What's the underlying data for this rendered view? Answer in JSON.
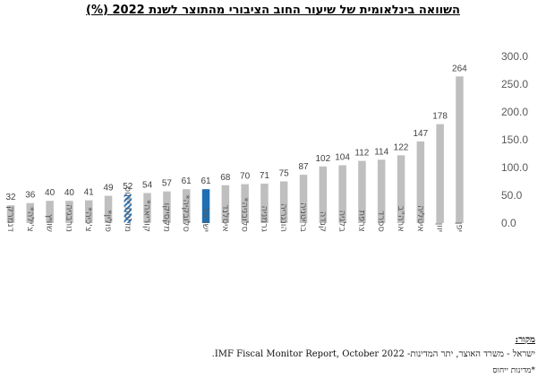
{
  "chart_data": {
    "type": "bar",
    "title": "השוואה בינלאומית של שיעור החוב הציבורי מהתוצר לשנת 2022 (%)",
    "xlabel": "",
    "ylabel": "",
    "ylim": [
      0,
      300
    ],
    "yticks": [
      "0.0",
      "50.0",
      "100.0",
      "150.0",
      "200.0",
      "250.0",
      "300.0"
    ],
    "y_axis_side": "right",
    "grid": false,
    "legend": "none",
    "categories": [
      "דנמרק",
      "צ'ילה*",
      "שוויץ",
      "נורבגיה",
      "צ'כיה*",
      "פולין*",
      "מדינות ייחוס",
      "קוריאה*",
      "מקסיקו",
      "סלובקיה*",
      "ישראל",
      "איסלנד",
      "סלובניה*",
      "גרמניה",
      "הונגריה",
      "בריטניה",
      "קנדה",
      "בלגיה",
      "צרפת",
      "ספרד",
      "ארה\"ב",
      "איטליה",
      "יוון",
      "יפן"
    ],
    "values": [
      32,
      36,
      40,
      40,
      41,
      49,
      52,
      54,
      57,
      61,
      61,
      68,
      70,
      71,
      75,
      87,
      102,
      104,
      112,
      114,
      122,
      147,
      178,
      264
    ],
    "value_labels": [
      "32",
      "36",
      "40",
      "40",
      "41",
      "49",
      "52",
      "54",
      "57",
      "61",
      "61",
      "68",
      "70",
      "71",
      "75",
      "87",
      "102",
      "104",
      "112",
      "114",
      "122",
      "147",
      "178",
      "264"
    ],
    "bar_styles": [
      "plain",
      "plain",
      "plain",
      "plain",
      "plain",
      "plain",
      "hatched",
      "plain",
      "plain",
      "plain",
      "highlight",
      "plain",
      "plain",
      "plain",
      "plain",
      "plain",
      "plain",
      "plain",
      "plain",
      "plain",
      "plain",
      "plain",
      "plain",
      "plain"
    ],
    "colors": {
      "bar": "#bfbfbf",
      "highlight": "#1f6fb2",
      "hatch": "#2e75b6",
      "label": "#404040",
      "axis_text": "#595959"
    }
  },
  "source": {
    "heading": "מקור:",
    "line": "ישראל - משרד האוצר, יתר המדינות- IMF Fiscal Monitor Report, October 2022.",
    "footnote": "*מדינות ייחוס"
  }
}
